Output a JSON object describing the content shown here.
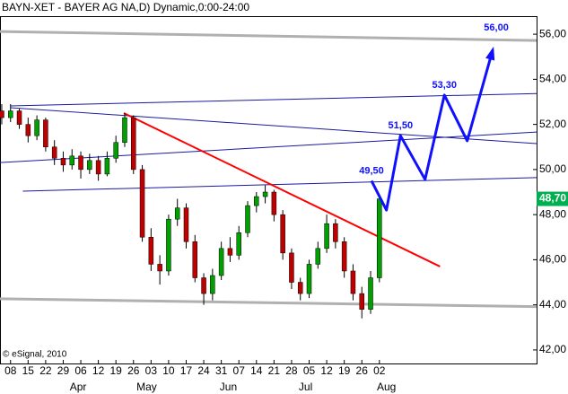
{
  "chart_data": {
    "type": "candlestick",
    "title": "BAYN-XET - BAYER AG  NA,D) Dynamic,0:00-24:00",
    "watermark": "© eSignal, 2010",
    "up_color": "#00a000",
    "down_color": "#c00000",
    "xlim": [
      -0.2,
      60.9
    ],
    "ylim": [
      41.4,
      56.8
    ],
    "yticks": [
      {
        "value": 42,
        "label": "42,00"
      },
      {
        "value": 44,
        "label": "44,00"
      },
      {
        "value": 46,
        "label": "46,00"
      },
      {
        "value": 48,
        "label": "48,00"
      },
      {
        "value": 50,
        "label": "50,00"
      },
      {
        "value": 52,
        "label": "52,00"
      },
      {
        "value": 54,
        "label": "54,00"
      },
      {
        "value": 56,
        "label": "56,00"
      }
    ],
    "xticks": [
      {
        "value": 1,
        "label": "08"
      },
      {
        "value": 3,
        "label": "15"
      },
      {
        "value": 5,
        "label": "22"
      },
      {
        "value": 7,
        "label": "29"
      },
      {
        "value": 9,
        "label": "06"
      },
      {
        "value": 11,
        "label": "12"
      },
      {
        "value": 13,
        "label": "19"
      },
      {
        "value": 15,
        "label": "26"
      },
      {
        "value": 17,
        "label": "03"
      },
      {
        "value": 19,
        "label": "10"
      },
      {
        "value": 21,
        "label": "17"
      },
      {
        "value": 23,
        "label": "24"
      },
      {
        "value": 25,
        "label": "31"
      },
      {
        "value": 27,
        "label": "07"
      },
      {
        "value": 29,
        "label": "14"
      },
      {
        "value": 31,
        "label": "21"
      },
      {
        "value": 33,
        "label": "28"
      },
      {
        "value": 35,
        "label": "05"
      },
      {
        "value": 37,
        "label": "12"
      },
      {
        "value": 39,
        "label": "19"
      },
      {
        "value": 41,
        "label": "26"
      },
      {
        "value": 43,
        "label": "02"
      }
    ],
    "month_ticks": [
      {
        "value": 8.7,
        "label": "Apr"
      },
      {
        "value": 16.5,
        "label": "May"
      },
      {
        "value": 25.8,
        "label": "Jun"
      },
      {
        "value": 34.6,
        "label": "Jul"
      },
      {
        "value": 43.8,
        "label": "Aug"
      }
    ],
    "candles": [
      [
        52.6,
        52.9,
        52.0,
        52.3
      ],
      [
        52.3,
        52.9,
        52.1,
        52.6
      ],
      [
        52.6,
        52.7,
        51.8,
        52.0
      ],
      [
        52.0,
        52.3,
        51.2,
        51.5
      ],
      [
        51.5,
        52.4,
        51.3,
        52.2
      ],
      [
        52.2,
        52.3,
        50.8,
        51.0
      ],
      [
        51.0,
        51.3,
        50.2,
        50.5
      ],
      [
        50.5,
        50.8,
        49.9,
        50.2
      ],
      [
        50.2,
        50.9,
        50.0,
        50.6
      ],
      [
        50.6,
        50.8,
        49.6,
        50.0
      ],
      [
        50.0,
        50.7,
        49.8,
        50.4
      ],
      [
        50.4,
        50.6,
        49.5,
        49.8
      ],
      [
        49.8,
        50.8,
        49.7,
        50.5
      ],
      [
        50.5,
        51.5,
        50.3,
        51.2
      ],
      [
        51.2,
        52.5,
        51.0,
        52.3
      ],
      [
        52.3,
        52.4,
        49.8,
        50.0
      ],
      [
        50.0,
        50.2,
        46.8,
        47.0
      ],
      [
        47.0,
        47.4,
        45.5,
        45.8
      ],
      [
        45.8,
        46.2,
        44.9,
        45.5
      ],
      [
        45.5,
        48.0,
        45.3,
        47.8
      ],
      [
        47.8,
        48.7,
        47.5,
        48.3
      ],
      [
        48.3,
        48.5,
        46.5,
        46.8
      ],
      [
        46.8,
        47.1,
        45.0,
        45.2
      ],
      [
        45.2,
        45.4,
        44.0,
        44.5
      ],
      [
        44.5,
        45.6,
        44.2,
        45.3
      ],
      [
        45.3,
        46.8,
        45.1,
        46.5
      ],
      [
        46.5,
        47.0,
        45.9,
        46.2
      ],
      [
        46.2,
        47.5,
        46.0,
        47.2
      ],
      [
        47.2,
        48.6,
        47.0,
        48.4
      ],
      [
        48.4,
        49.0,
        48.1,
        48.8
      ],
      [
        48.8,
        49.3,
        48.5,
        49.0
      ],
      [
        49.0,
        49.1,
        47.7,
        48.0
      ],
      [
        48.0,
        48.2,
        46.0,
        46.3
      ],
      [
        46.3,
        46.5,
        44.7,
        45.0
      ],
      [
        45.0,
        45.2,
        44.2,
        44.5
      ],
      [
        44.5,
        46.0,
        44.3,
        45.8
      ],
      [
        45.8,
        46.8,
        45.6,
        46.5
      ],
      [
        46.5,
        48.0,
        46.3,
        47.6
      ],
      [
        47.6,
        47.8,
        46.5,
        46.8
      ],
      [
        46.8,
        47.0,
        45.2,
        45.5
      ],
      [
        45.5,
        45.8,
        44.2,
        44.5
      ],
      [
        44.5,
        44.8,
        43.4,
        43.8
      ],
      [
        43.8,
        45.5,
        43.6,
        45.2
      ],
      [
        45.2,
        48.9,
        45.0,
        48.7
      ]
    ],
    "lines": [
      {
        "color": "#b0b0b0",
        "width": 3,
        "x": [
          -0.2,
          60.9
        ],
        "y": [
          56.12,
          55.72
        ]
      },
      {
        "color": "#b0b0b0",
        "width": 3,
        "x": [
          -0.2,
          60.9
        ],
        "y": [
          44.27,
          43.92
        ]
      },
      {
        "color": "#1a1aa0",
        "width": 1,
        "x": [
          1.0,
          60.9
        ],
        "y": [
          52.82,
          53.37
        ]
      },
      {
        "color": "#1a1aa0",
        "width": 1,
        "x": [
          1.0,
          60.9
        ],
        "y": [
          52.74,
          51.15
        ]
      },
      {
        "color": "#1a1aa0",
        "width": 1,
        "x": [
          -0.2,
          60.9
        ],
        "y": [
          50.31,
          51.66
        ]
      },
      {
        "color": "#1a1aa0",
        "width": 1,
        "x": [
          2.4,
          60.9
        ],
        "y": [
          49.04,
          49.64
        ]
      },
      {
        "color": "#ff0000",
        "width": 2,
        "x": [
          13.9,
          49.9
        ],
        "y": [
          52.5,
          45.7
        ]
      }
    ],
    "projection": {
      "color": "#1010ff",
      "x": [
        42.1,
        43.8,
        45.4,
        48.2,
        50.4,
        53.0,
        55.9
      ],
      "values": [
        49.5,
        48.2,
        51.5,
        49.56,
        53.3,
        51.27,
        55.3
      ],
      "value_labels": [
        "49,50",
        null,
        "51,50",
        null,
        "53,30",
        null,
        null
      ]
    },
    "target": {
      "value": 56,
      "label": "56,00"
    },
    "last_price": {
      "value": 48.7,
      "label": "48,70",
      "color": "#00b050"
    }
  }
}
